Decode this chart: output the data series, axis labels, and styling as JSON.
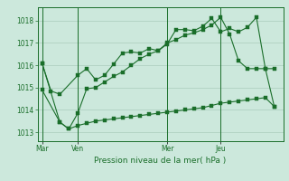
{
  "background_color": "#cce8dc",
  "grid_color": "#aaccbb",
  "line_color": "#1a6e2a",
  "xlabel": "Pression niveau de la mer( hPa )",
  "ylim": [
    1012.6,
    1018.6
  ],
  "yticks": [
    1013,
    1014,
    1015,
    1016,
    1017,
    1018
  ],
  "day_labels": [
    "Mar",
    "Ven",
    "Mer",
    "Jeu"
  ],
  "day_positions": [
    0,
    4,
    14,
    20
  ],
  "xlim": [
    -0.5,
    27
  ],
  "line1_x": [
    0,
    1,
    2,
    4,
    5,
    6,
    7,
    8,
    9,
    10,
    11,
    12,
    13,
    14,
    15,
    16,
    17,
    18,
    19,
    20,
    21,
    22,
    23,
    24,
    25,
    26
  ],
  "line1_y": [
    1016.1,
    1014.85,
    1014.7,
    1015.55,
    1015.85,
    1015.35,
    1015.55,
    1016.05,
    1016.55,
    1016.6,
    1016.55,
    1016.75,
    1016.65,
    1016.95,
    1017.6,
    1017.6,
    1017.55,
    1017.75,
    1018.1,
    1017.5,
    1017.65,
    1017.5,
    1017.7,
    1018.15,
    1015.85,
    1015.85
  ],
  "line2_x": [
    0,
    2,
    3,
    4,
    5,
    6,
    7,
    8,
    9,
    10,
    11,
    12,
    13,
    14,
    15,
    16,
    17,
    18,
    19,
    20,
    21,
    22,
    23,
    24,
    25,
    26
  ],
  "line2_y": [
    1016.1,
    1013.45,
    1013.15,
    1013.85,
    1014.95,
    1015.0,
    1015.25,
    1015.5,
    1015.7,
    1016.0,
    1016.3,
    1016.5,
    1016.65,
    1017.0,
    1017.15,
    1017.35,
    1017.45,
    1017.6,
    1017.8,
    1018.15,
    1017.4,
    1016.2,
    1015.85,
    1015.85,
    1015.85,
    1014.15
  ],
  "line3_x": [
    0,
    2,
    3,
    4,
    5,
    6,
    7,
    8,
    9,
    10,
    11,
    12,
    13,
    14,
    15,
    16,
    17,
    18,
    19,
    20,
    21,
    22,
    23,
    24,
    25,
    26
  ],
  "line3_y": [
    1014.9,
    1013.45,
    1013.15,
    1013.3,
    1013.4,
    1013.5,
    1013.55,
    1013.6,
    1013.65,
    1013.7,
    1013.75,
    1013.8,
    1013.85,
    1013.9,
    1013.95,
    1014.0,
    1014.05,
    1014.1,
    1014.2,
    1014.3,
    1014.35,
    1014.4,
    1014.45,
    1014.5,
    1014.55,
    1014.15
  ]
}
